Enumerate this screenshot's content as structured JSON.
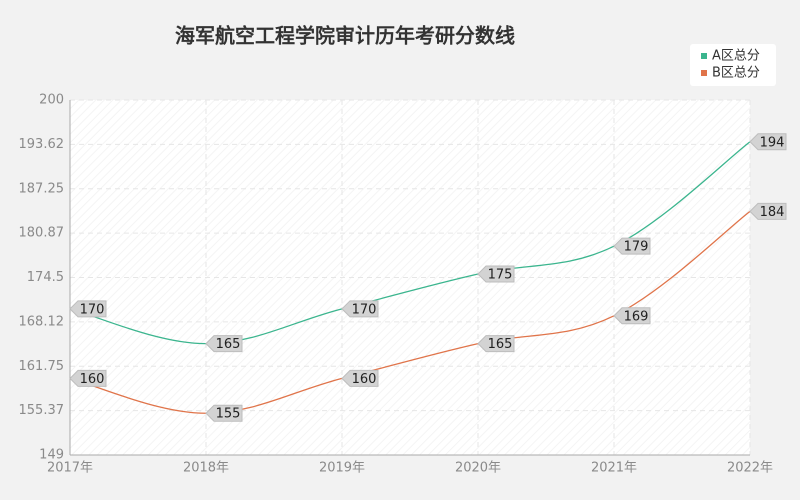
{
  "chart_data": {
    "type": "line",
    "title": "海军航空工程学院审计历年考研分数线",
    "categories": [
      "2017年",
      "2018年",
      "2019年",
      "2020年",
      "2021年",
      "2022年"
    ],
    "series": [
      {
        "name": "A区总分",
        "color": "#3bb58e",
        "values": [
          170,
          165,
          170,
          175,
          179,
          194
        ]
      },
      {
        "name": "B区总分",
        "color": "#e0744a",
        "values": [
          160,
          155,
          160,
          165,
          169,
          184
        ]
      }
    ],
    "ylim": [
      149,
      200
    ],
    "yticks": [
      149,
      155.37,
      161.75,
      168.12,
      174.5,
      180.87,
      187.25,
      193.62,
      200
    ],
    "grid": true,
    "legend": "top-right"
  }
}
